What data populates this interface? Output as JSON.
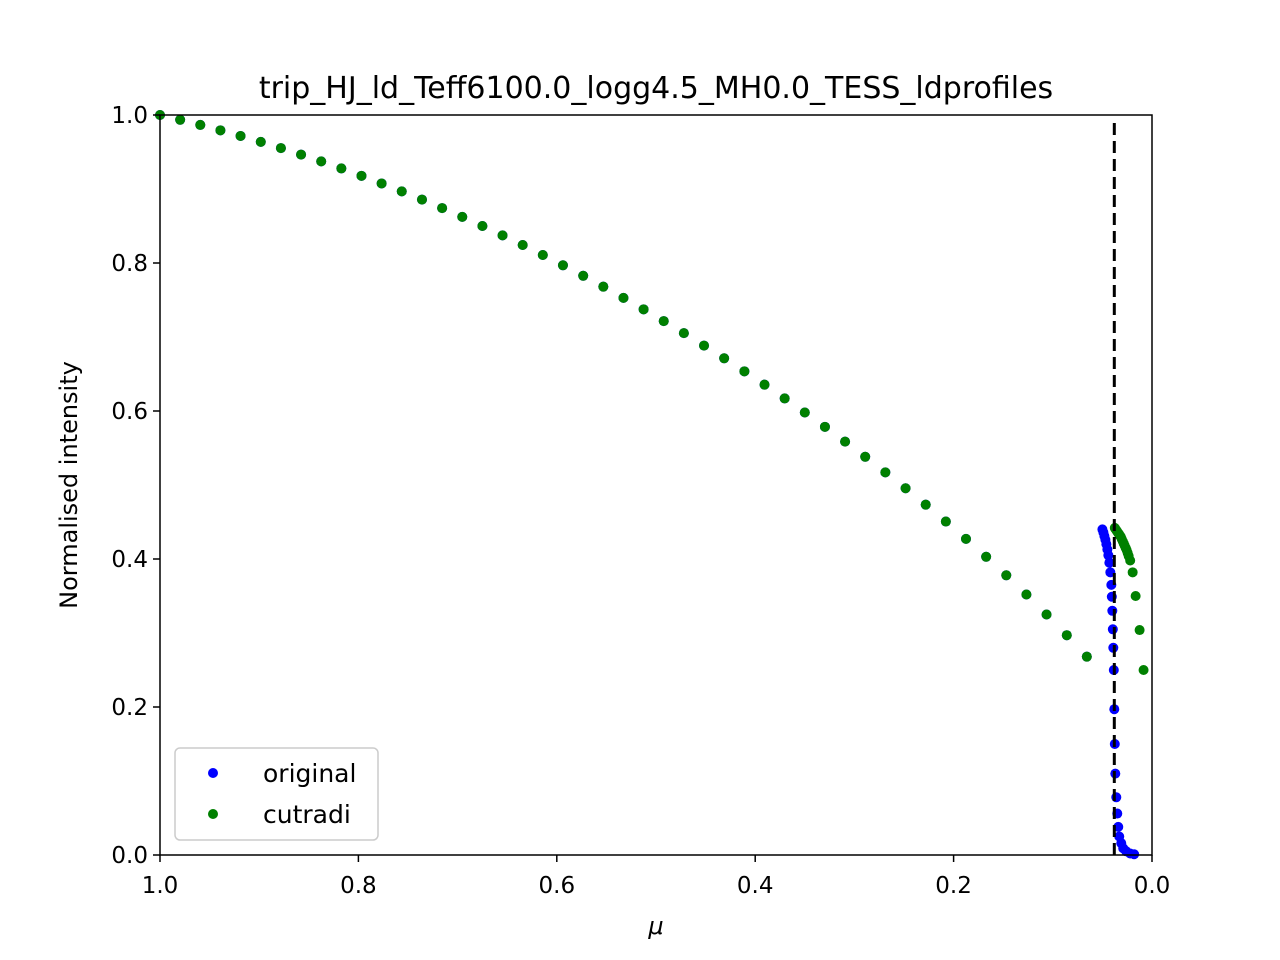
{
  "chart_data": {
    "type": "scatter",
    "title": "trip_HJ_ld_Teff6100.0_logg4.5_MH0.0_TESS_ldprofiles",
    "xlabel": "μ",
    "ylabel": "Normalised intensity",
    "xlim": [
      1.0,
      0.0
    ],
    "ylim": [
      0.0,
      1.0
    ],
    "x_reversed": true,
    "grid": false,
    "xticks": [
      "1.0",
      "0.8",
      "0.6",
      "0.4",
      "0.2",
      "0.0"
    ],
    "yticks": [
      "0.0",
      "0.2",
      "0.4",
      "0.6",
      "0.8",
      "1.0"
    ],
    "legend_placement": "lower-left",
    "vline": {
      "x": 0.038,
      "style": "dashed",
      "color": "#000000"
    },
    "series": [
      {
        "name": "original",
        "color": "#0000ff",
        "x": [
          1.0,
          0.9797,
          0.9594,
          0.9391,
          0.9188,
          0.8984,
          0.8781,
          0.8578,
          0.8375,
          0.8172,
          0.7969,
          0.7766,
          0.7563,
          0.7359,
          0.7156,
          0.6953,
          0.675,
          0.6547,
          0.6344,
          0.6141,
          0.5938,
          0.5734,
          0.5531,
          0.5328,
          0.5125,
          0.4922,
          0.4719,
          0.4516,
          0.4313,
          0.4109,
          0.3906,
          0.3703,
          0.35,
          0.3297,
          0.3094,
          0.2891,
          0.2688,
          0.2484,
          0.2281,
          0.2078,
          0.1875,
          0.1672,
          0.1469,
          0.1266,
          0.1063,
          0.0859,
          0.0657,
          0.05,
          0.049,
          0.048,
          0.047,
          0.046,
          0.045,
          0.044,
          0.043,
          0.042,
          0.041,
          0.0405,
          0.04,
          0.0395,
          0.039,
          0.0385,
          0.038,
          0.0375,
          0.037,
          0.036,
          0.035,
          0.034,
          0.033,
          0.031,
          0.029,
          0.026,
          0.022,
          0.018
        ],
        "y": [
          1.0,
          0.9935,
          0.9866,
          0.9793,
          0.9717,
          0.9637,
          0.9553,
          0.9465,
          0.9373,
          0.9278,
          0.9178,
          0.9075,
          0.8968,
          0.8857,
          0.8742,
          0.8623,
          0.85,
          0.8373,
          0.8243,
          0.8108,
          0.7969,
          0.7827,
          0.768,
          0.7529,
          0.7374,
          0.7215,
          0.7052,
          0.6884,
          0.6712,
          0.6536,
          0.6356,
          0.617,
          0.598,
          0.5786,
          0.5586,
          0.5381,
          0.5171,
          0.4956,
          0.4734,
          0.4506,
          0.4272,
          0.403,
          0.378,
          0.352,
          0.325,
          0.297,
          0.268,
          0.44,
          0.436,
          0.431,
          0.426,
          0.42,
          0.413,
          0.405,
          0.395,
          0.382,
          0.365,
          0.349,
          0.33,
          0.305,
          0.28,
          0.25,
          0.197,
          0.15,
          0.11,
          0.078,
          0.056,
          0.038,
          0.025,
          0.016,
          0.009,
          0.005,
          0.002,
          0.001
        ]
      },
      {
        "name": "cutradi",
        "color": "#008000",
        "x": [
          1.0,
          0.9797,
          0.9594,
          0.9391,
          0.9188,
          0.8984,
          0.8781,
          0.8578,
          0.8375,
          0.8172,
          0.7969,
          0.7766,
          0.7563,
          0.7359,
          0.7156,
          0.6953,
          0.675,
          0.6547,
          0.6344,
          0.6141,
          0.5938,
          0.5734,
          0.5531,
          0.5328,
          0.5125,
          0.4922,
          0.4719,
          0.4516,
          0.4313,
          0.4109,
          0.3906,
          0.3703,
          0.35,
          0.3297,
          0.3094,
          0.2891,
          0.2688,
          0.2484,
          0.2281,
          0.2078,
          0.1875,
          0.1672,
          0.1469,
          0.1266,
          0.1063,
          0.0859,
          0.0657,
          0.0375,
          0.0365,
          0.0355,
          0.0345,
          0.0335,
          0.0325,
          0.0315,
          0.0305,
          0.0295,
          0.0285,
          0.0275,
          0.0265,
          0.0255,
          0.0245,
          0.0235,
          0.022,
          0.0195,
          0.0165,
          0.0125,
          0.0085
        ],
        "y": [
          1.0,
          0.9935,
          0.9866,
          0.9793,
          0.9717,
          0.9637,
          0.9553,
          0.9465,
          0.9373,
          0.9278,
          0.9178,
          0.9075,
          0.8968,
          0.8857,
          0.8742,
          0.8623,
          0.85,
          0.8373,
          0.8243,
          0.8108,
          0.7969,
          0.7827,
          0.768,
          0.7529,
          0.7374,
          0.7215,
          0.7052,
          0.6884,
          0.6712,
          0.6536,
          0.6356,
          0.617,
          0.598,
          0.5786,
          0.5586,
          0.5381,
          0.5171,
          0.4956,
          0.4734,
          0.4506,
          0.4272,
          0.403,
          0.378,
          0.352,
          0.325,
          0.297,
          0.268,
          0.442,
          0.44,
          0.438,
          0.436,
          0.434,
          0.432,
          0.43,
          0.427,
          0.424,
          0.421,
          0.418,
          0.415,
          0.412,
          0.408,
          0.404,
          0.398,
          0.382,
          0.35,
          0.304,
          0.25
        ]
      }
    ]
  }
}
